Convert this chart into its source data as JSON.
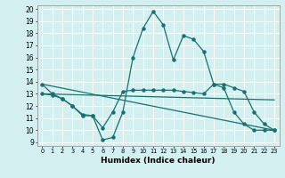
{
  "xlabel": "Humidex (Indice chaleur)",
  "xlim": [
    -0.5,
    23.5
  ],
  "ylim": [
    8.7,
    20.3
  ],
  "yticks": [
    9,
    10,
    11,
    12,
    13,
    14,
    15,
    16,
    17,
    18,
    19,
    20
  ],
  "xticks": [
    0,
    1,
    2,
    3,
    4,
    5,
    6,
    7,
    8,
    9,
    10,
    11,
    12,
    13,
    14,
    15,
    16,
    17,
    18,
    19,
    20,
    21,
    22,
    23
  ],
  "bg_color": "#d4efef",
  "line_color": "#1a7070",
  "grid_color": "#ffffff",
  "lines": [
    {
      "x": [
        0,
        1,
        2,
        3,
        4,
        5,
        6,
        7,
        8,
        9,
        10,
        11,
        12,
        13,
        14,
        15,
        16,
        17,
        18,
        19,
        20,
        21,
        22,
        23
      ],
      "y": [
        13.8,
        13.0,
        12.6,
        12.0,
        11.2,
        11.2,
        9.2,
        9.4,
        11.5,
        16.0,
        18.4,
        19.8,
        18.7,
        15.8,
        17.8,
        17.5,
        16.5,
        13.8,
        13.5,
        11.5,
        10.5,
        10.0,
        10.0,
        10.0
      ],
      "markers": true
    },
    {
      "x": [
        0,
        1,
        2,
        3,
        4,
        5,
        6,
        7,
        8,
        9,
        10,
        11,
        12,
        13,
        14,
        15,
        16,
        17,
        18,
        19,
        20,
        21,
        22,
        23
      ],
      "y": [
        13.0,
        12.9,
        12.6,
        12.0,
        11.3,
        11.2,
        10.2,
        11.5,
        13.2,
        13.3,
        13.3,
        13.3,
        13.3,
        13.3,
        13.2,
        13.1,
        13.0,
        13.8,
        13.8,
        13.5,
        13.2,
        11.5,
        10.5,
        10.0
      ],
      "markers": true
    },
    {
      "x": [
        0,
        23
      ],
      "y": [
        13.8,
        10.0
      ],
      "markers": false
    },
    {
      "x": [
        0,
        23
      ],
      "y": [
        13.0,
        12.5
      ],
      "markers": false
    }
  ]
}
